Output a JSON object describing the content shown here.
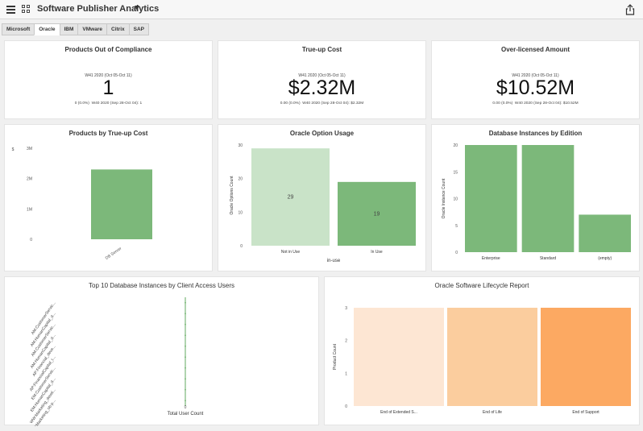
{
  "header": {
    "title": "Software Publisher Analytics",
    "menu_icon": "hamburger-icon",
    "grid_icon": "grid-icon",
    "dropdown_icon": "caret-down-icon",
    "share_icon": "share-icon"
  },
  "tabs": [
    {
      "label": "Microsoft",
      "active": false
    },
    {
      "label": "Oracle",
      "active": true
    },
    {
      "label": "IBM",
      "active": false
    },
    {
      "label": "VMware",
      "active": false
    },
    {
      "label": "Citrix",
      "active": false
    },
    {
      "label": "SAP",
      "active": false
    }
  ],
  "kpis": [
    {
      "title": "Products Out of Compliance",
      "week": "W41 2020 (Oct 05-Oct 11)",
      "value": "1",
      "change": "0 (0.0%)",
      "previous": "W40 2020 (Sep 28-Oct 04): 1"
    },
    {
      "title": "True-up Cost",
      "week": "W41 2020 (Oct 05-Oct 11)",
      "value": "$2.32M",
      "change": "0.00 (0.0%)",
      "previous": "W40 2020 (Sep 28-Oct 04): $2.32M"
    },
    {
      "title": "Over-licensed Amount",
      "week": "W41 2020 (Oct 05-Oct 11)",
      "value": "$10.52M",
      "change": "0.00 (0.0%)",
      "previous": "W40 2020 (Sep 28-Oct 04): $10.52M"
    }
  ],
  "colors": {
    "green": "#7cb87a",
    "light_green": "#c9e3c8",
    "peach_light": "#fde6d3",
    "peach_mid": "#fbcd9e",
    "peach_dark": "#fca962"
  },
  "chart_data": [
    {
      "type": "bar",
      "title": "Products by True-up Cost",
      "ylabel": "$",
      "categories": [
        "DB Server"
      ],
      "values": [
        2300000
      ],
      "ylim": [
        0,
        3000000
      ],
      "yticks": [
        "0",
        "1M",
        "2M",
        "3M"
      ]
    },
    {
      "type": "bar",
      "title": "Oracle Option Usage",
      "xlabel": "in-use",
      "ylabel": "Oracle Options Count",
      "categories": [
        "Not in Use",
        "In Use"
      ],
      "values": [
        29,
        19
      ],
      "data_labels": [
        "29",
        "19"
      ],
      "ylim": [
        0,
        30
      ],
      "yticks": [
        "0",
        "10",
        "20",
        "30"
      ]
    },
    {
      "type": "bar",
      "title": "Database Instances by Edition",
      "ylabel": "Oracle Instance Count",
      "categories": [
        "Enterprise",
        "Standard",
        "(empty)"
      ],
      "values": [
        20,
        20,
        7
      ],
      "ylim": [
        0,
        20
      ],
      "yticks": [
        "0",
        "5",
        "10",
        "15",
        "20"
      ]
    },
    {
      "type": "bar",
      "orientation": "horizontal",
      "title": "Top 10 Database Instances by Client Access Users",
      "xlabel": "Total User Count",
      "categories": [
        "AM:CustomerServic...",
        "AM:HumanCapital_d...",
        "AM:CustomerServic...",
        "AM:HumanCapital_d...",
        "AP:Financial_deve...",
        "AP:FinancialCapital_t...",
        "EM:CustomerServic...",
        "EM:HumanCapital_d...",
        "WW:Marketing_devel...",
        "WW:Marketing_ob-p..."
      ],
      "values": [
        0,
        0,
        0,
        0,
        0,
        0,
        0,
        0,
        0,
        0
      ],
      "xticks": [
        "0"
      ]
    },
    {
      "type": "bar",
      "title": "Oracle Software Lifecycle Report",
      "ylabel": "Product Count",
      "categories": [
        "End of Extended S...",
        "End of Life",
        "End of Support"
      ],
      "values": [
        3,
        3,
        3
      ],
      "ylim": [
        0,
        3
      ],
      "yticks": [
        "0",
        "1",
        "2",
        "3"
      ]
    }
  ]
}
